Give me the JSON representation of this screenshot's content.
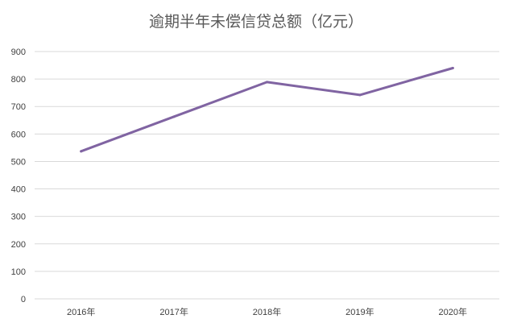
{
  "chart_data": {
    "type": "line",
    "title": "逾期半年未偿信贷总额（亿元）",
    "xlabel": "",
    "ylabel": "",
    "categories": [
      "2016年",
      "2017年",
      "2018年",
      "2019年",
      "2020年"
    ],
    "series": [
      {
        "values": [
          537,
          663,
          789,
          742,
          840
        ],
        "color": "#8064a2"
      }
    ],
    "ylim": [
      0,
      900
    ],
    "yticks": [
      "0",
      "100",
      "200",
      "300",
      "400",
      "500",
      "600",
      "700",
      "800",
      "900"
    ],
    "grid": true,
    "legend": "none"
  }
}
